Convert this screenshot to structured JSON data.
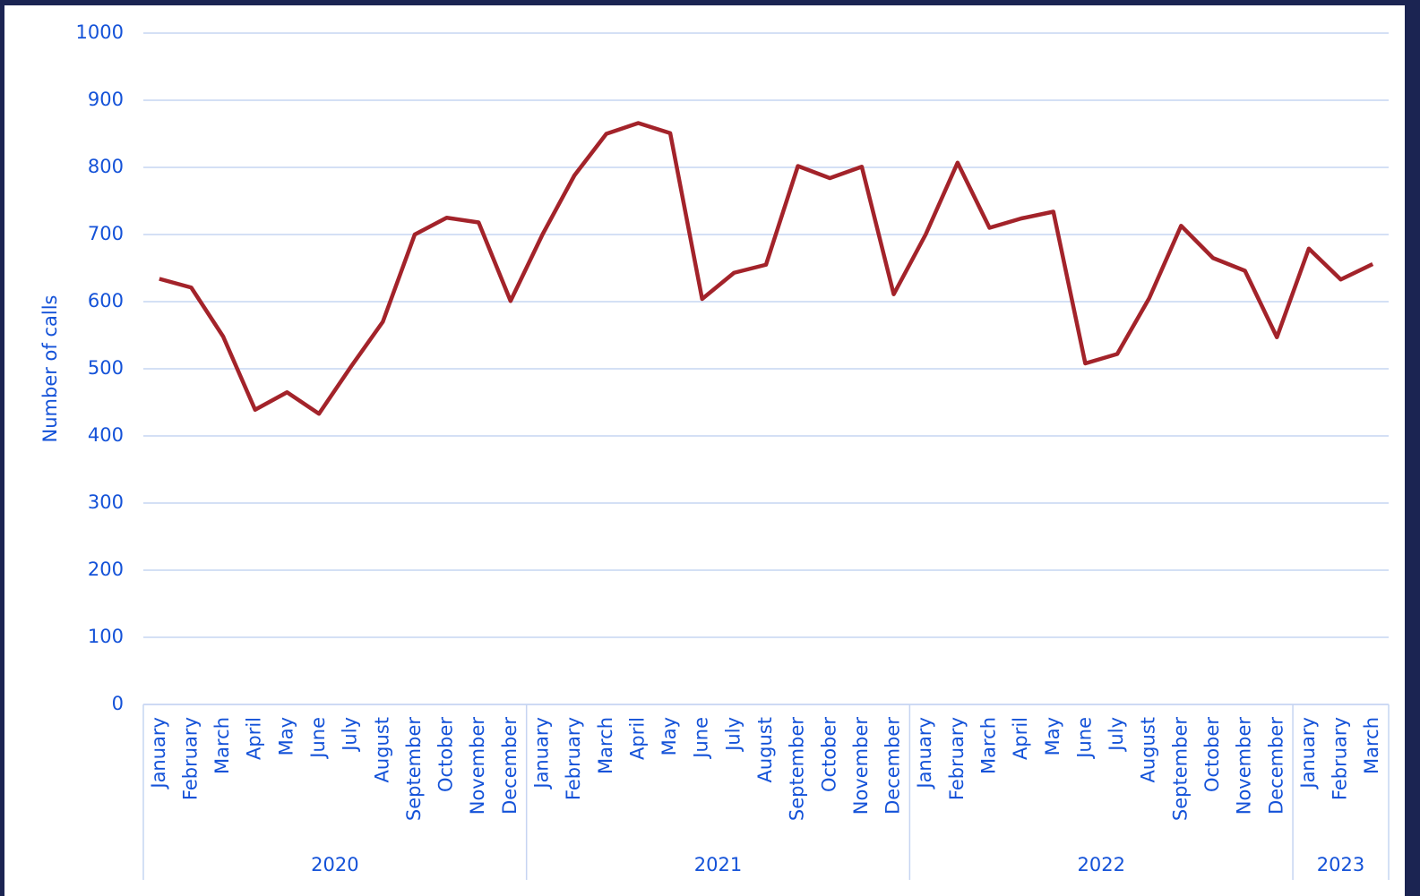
{
  "chart_data": {
    "type": "line",
    "y_label": "Number of calls",
    "groups": [
      {
        "name": "2020",
        "categories": [
          "January",
          "February",
          "March",
          "April",
          "May",
          "June",
          "July",
          "August",
          "September",
          "October",
          "November",
          "December"
        ]
      },
      {
        "name": "2021",
        "categories": [
          "January",
          "February",
          "March",
          "April",
          "May",
          "June",
          "July",
          "August",
          "September",
          "October",
          "November",
          "December"
        ]
      },
      {
        "name": "2022",
        "categories": [
          "January",
          "February",
          "March",
          "April",
          "May",
          "June",
          "July",
          "August",
          "September",
          "October",
          "November",
          "December"
        ]
      },
      {
        "name": "2023",
        "categories": [
          "January",
          "February",
          "March"
        ]
      }
    ],
    "series": [
      {
        "color": "#a3232a",
        "values": [
          634,
          621,
          548,
          439,
          465,
          433,
          503,
          570,
          700,
          725,
          718,
          601,
          700,
          788,
          850,
          866,
          851,
          604,
          643,
          655,
          802,
          784,
          801,
          611,
          700,
          807,
          710,
          724,
          734,
          508,
          522,
          605,
          713,
          665,
          646,
          547,
          679,
          633,
          656
        ]
      }
    ],
    "ylim": [
      0,
      1000
    ],
    "yticks": [
      0,
      100,
      200,
      300,
      400,
      500,
      600,
      700,
      800,
      900,
      1000
    ],
    "grid": true
  }
}
